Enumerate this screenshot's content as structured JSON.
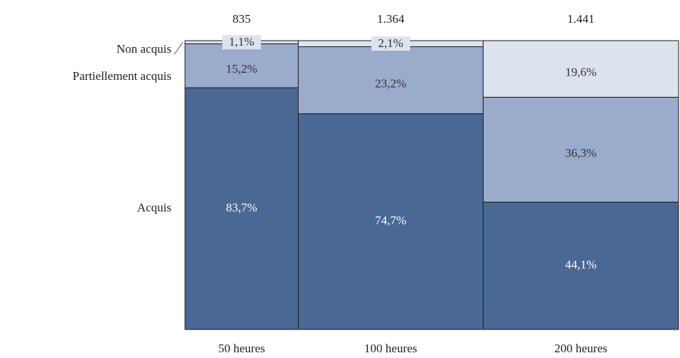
{
  "chart_data": {
    "type": "mosaic",
    "categories": [
      "50 heures",
      "100 heures",
      "200 heures"
    ],
    "counts": [
      835,
      1364,
      1441
    ],
    "count_labels": [
      "835",
      "1.364",
      "1.441"
    ],
    "ylim": [
      0,
      100
    ],
    "series": [
      {
        "name": "Acquis",
        "color": "#4a6894",
        "values": [
          83.7,
          74.7,
          44.1
        ],
        "value_labels": [
          "83,7%",
          "74,7%",
          "44,1%"
        ]
      },
      {
        "name": "Partiellement acquis",
        "color": "#9aabcb",
        "values": [
          15.2,
          23.2,
          36.3
        ],
        "value_labels": [
          "15,2%",
          "23,2%",
          "36,3%"
        ]
      },
      {
        "name": "Non acquis",
        "color": "#dde2ef",
        "values": [
          1.1,
          2.1,
          19.6
        ],
        "value_labels": [
          "1,1%",
          "2,1%",
          "19,6%"
        ]
      }
    ]
  }
}
